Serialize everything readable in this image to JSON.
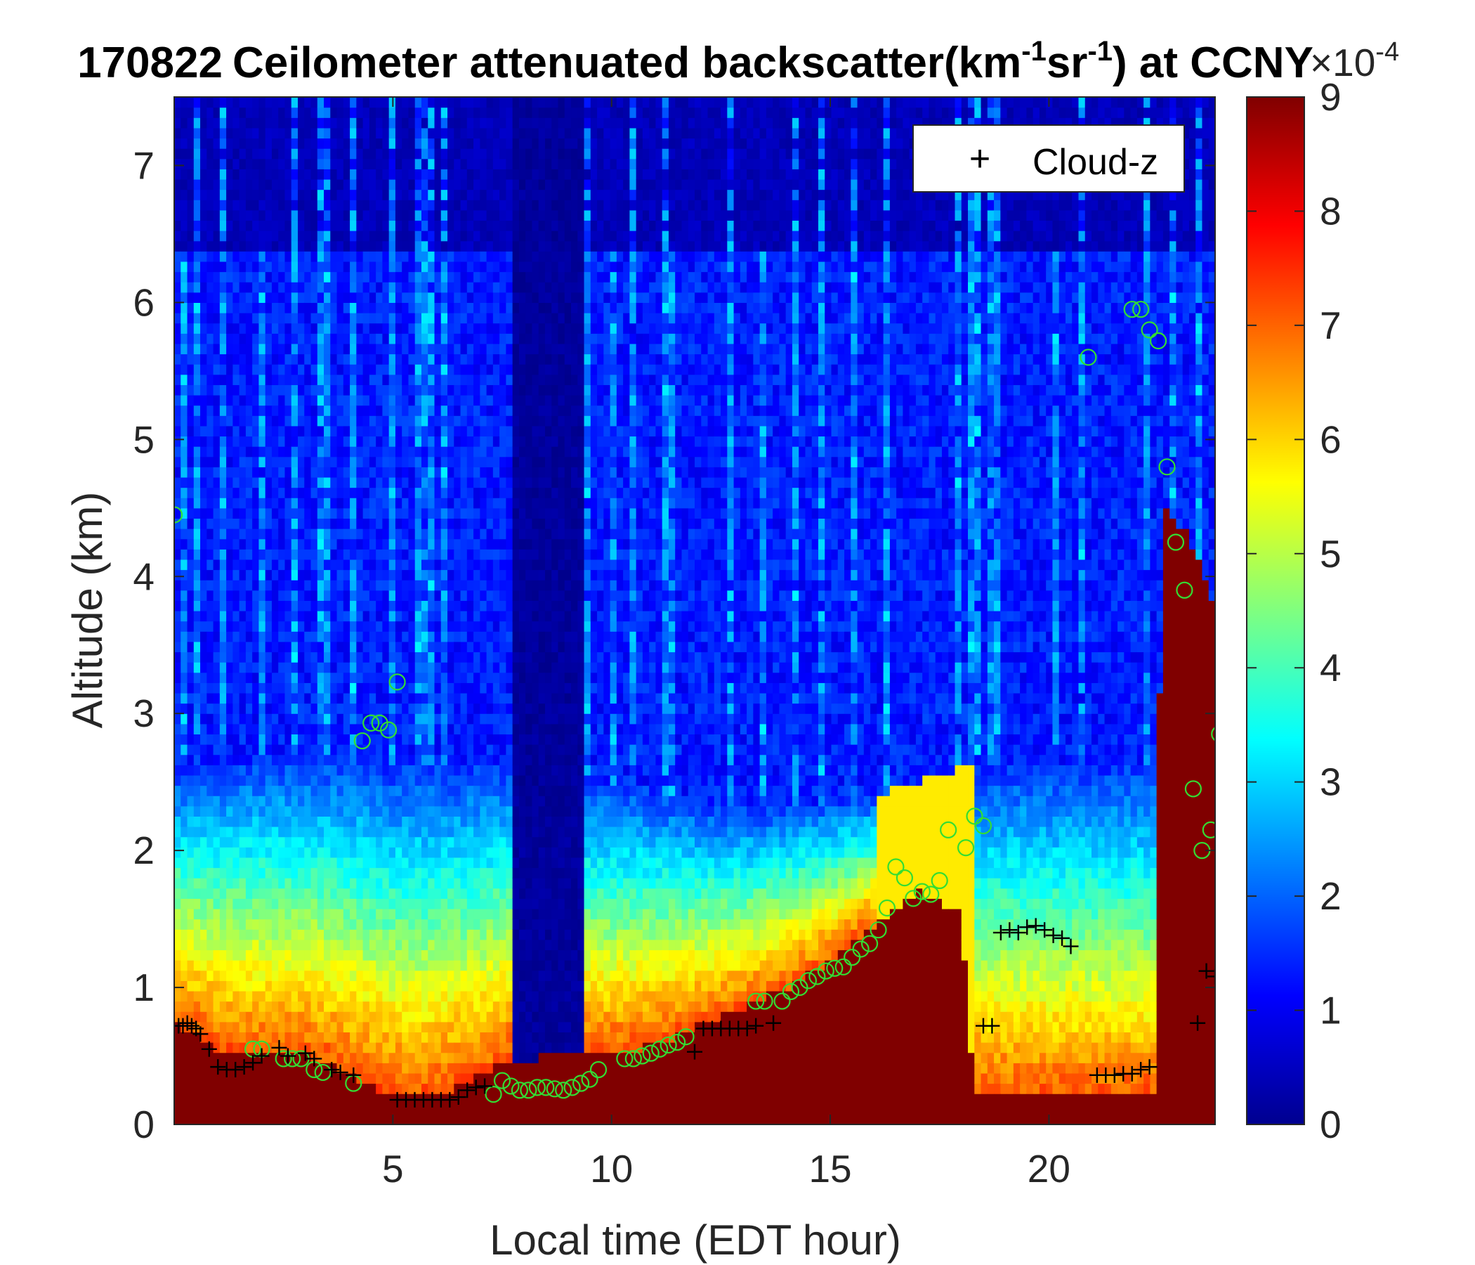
{
  "chart_data": {
    "type": "heatmap",
    "title": {
      "date": "170822",
      "main": "Ceilometer attenuated backscatter(km",
      "sup1": "-1",
      "mid": "sr",
      "sup2": "-1",
      "tail": ") at CCNY"
    },
    "xlabel": "Local time (EDT hour)",
    "ylabel": "Altitude (km)",
    "xlim": [
      0,
      23.8
    ],
    "ylim": [
      0,
      7.5
    ],
    "xticks": [
      "5",
      "10",
      "15",
      "20"
    ],
    "yticks": [
      "0",
      "1",
      "2",
      "3",
      "4",
      "5",
      "6",
      "7"
    ],
    "colorbar": {
      "colormap": "jet",
      "range": [
        0,
        9
      ],
      "ticks": [
        "0",
        "1",
        "2",
        "3",
        "4",
        "5",
        "6",
        "7",
        "8",
        "9"
      ],
      "exponent_base": "×10",
      "exponent": "-4"
    },
    "legend": {
      "position": "top-right",
      "entries": [
        {
          "marker": "+",
          "label": "Cloud-z",
          "color": "#000000"
        }
      ]
    },
    "cloud_z": {
      "label": "Cloud-z",
      "x": [
        0.1,
        0.2,
        0.3,
        0.4,
        0.5,
        0.6,
        0.8,
        1.0,
        1.2,
        1.4,
        1.6,
        1.8,
        2.0,
        2.4,
        2.6,
        3.0,
        3.2,
        3.6,
        3.8,
        4.1,
        5.1,
        5.3,
        5.5,
        5.7,
        5.9,
        6.1,
        6.3,
        6.5,
        6.7,
        6.9,
        7.1,
        11.9,
        12.1,
        12.3,
        12.5,
        12.7,
        12.9,
        13.1,
        13.3,
        13.7,
        18.5,
        18.7,
        18.9,
        19.1,
        19.3,
        19.5,
        19.7,
        19.9,
        20.1,
        20.3,
        20.5,
        21.1,
        21.3,
        21.5,
        21.7,
        21.9,
        22.1,
        22.3,
        23.4,
        23.6,
        23.8
      ],
      "y": [
        0.72,
        0.72,
        0.74,
        0.72,
        0.7,
        0.66,
        0.55,
        0.42,
        0.4,
        0.4,
        0.42,
        0.45,
        0.5,
        0.56,
        0.5,
        0.52,
        0.48,
        0.4,
        0.38,
        0.36,
        0.18,
        0.18,
        0.18,
        0.18,
        0.18,
        0.18,
        0.18,
        0.2,
        0.25,
        0.27,
        0.28,
        0.53,
        0.7,
        0.7,
        0.7,
        0.7,
        0.7,
        0.7,
        0.72,
        0.74,
        0.72,
        0.72,
        1.4,
        1.42,
        1.4,
        1.44,
        1.45,
        1.42,
        1.38,
        1.36,
        1.3,
        0.36,
        0.36,
        0.36,
        0.37,
        0.37,
        0.4,
        0.42,
        0.74,
        1.12,
        1.08
      ]
    },
    "boundary_points": {
      "color": "#33dd33",
      "x": [
        0,
        1.8,
        2.0,
        2.5,
        2.7,
        2.9,
        3.2,
        3.4,
        4.1,
        4.3,
        4.5,
        4.7,
        4.9,
        5.1,
        7.3,
        7.5,
        7.7,
        7.9,
        8.1,
        8.3,
        8.5,
        8.7,
        8.9,
        9.1,
        9.3,
        9.5,
        9.7,
        10.3,
        10.5,
        10.7,
        10.9,
        11.1,
        11.3,
        11.5,
        11.7,
        13.3,
        13.5,
        13.9,
        14.1,
        14.3,
        14.5,
        14.7,
        14.9,
        15.1,
        15.3,
        15.5,
        15.7,
        15.9,
        16.1,
        16.3,
        16.5,
        16.7,
        16.9,
        17.1,
        17.3,
        17.5,
        17.7,
        18.1,
        18.3,
        18.5,
        20.9,
        21.9,
        22.1,
        22.3,
        22.5,
        22.7,
        22.9,
        23.1,
        23.3,
        23.5,
        23.7,
        23.9
      ],
      "y": [
        4.45,
        0.55,
        0.55,
        0.48,
        0.48,
        0.48,
        0.4,
        0.38,
        0.3,
        2.8,
        2.93,
        2.93,
        2.88,
        3.23,
        0.22,
        0.32,
        0.28,
        0.25,
        0.25,
        0.27,
        0.27,
        0.26,
        0.25,
        0.27,
        0.3,
        0.33,
        0.4,
        0.48,
        0.48,
        0.5,
        0.52,
        0.55,
        0.58,
        0.6,
        0.64,
        0.9,
        0.9,
        0.9,
        0.97,
        1.0,
        1.05,
        1.08,
        1.12,
        1.14,
        1.15,
        1.22,
        1.28,
        1.32,
        1.42,
        1.58,
        1.88,
        1.8,
        1.65,
        1.7,
        1.68,
        1.78,
        2.15,
        2.02,
        2.25,
        2.18,
        5.6,
        5.95,
        5.95,
        5.8,
        5.72,
        4.8,
        4.25,
        3.9,
        2.45,
        2.0,
        2.15,
        2.85
      ]
    }
  }
}
